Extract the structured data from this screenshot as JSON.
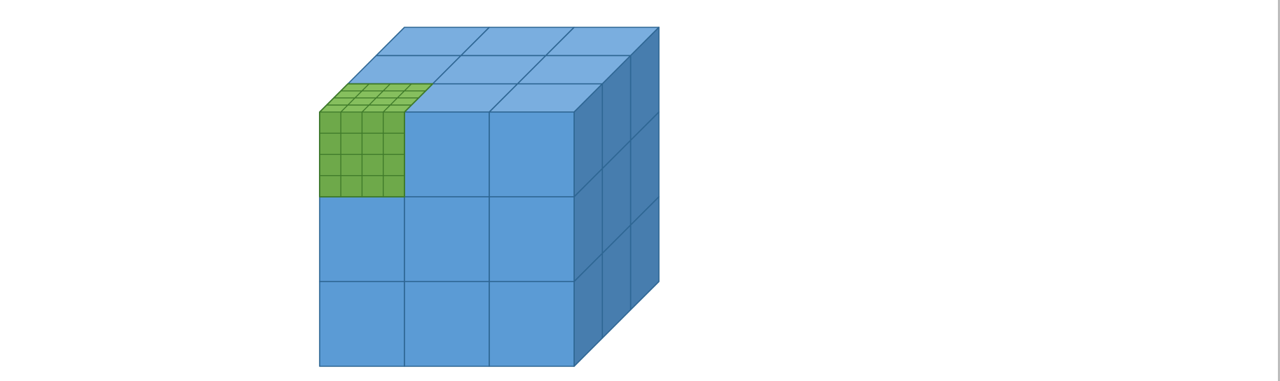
{
  "diagram": {
    "description_grid": {
      "big_cube_divisions": 3,
      "small_cube_divisions": 4
    },
    "colors": {
      "front": "#5b9bd5",
      "top": "#7aaedf",
      "side": "#477dae",
      "edge": "#2e6693",
      "green_front": "#6ea94a",
      "green_top": "#86bf5e",
      "green_edge": "#3f7a2a"
    }
  }
}
